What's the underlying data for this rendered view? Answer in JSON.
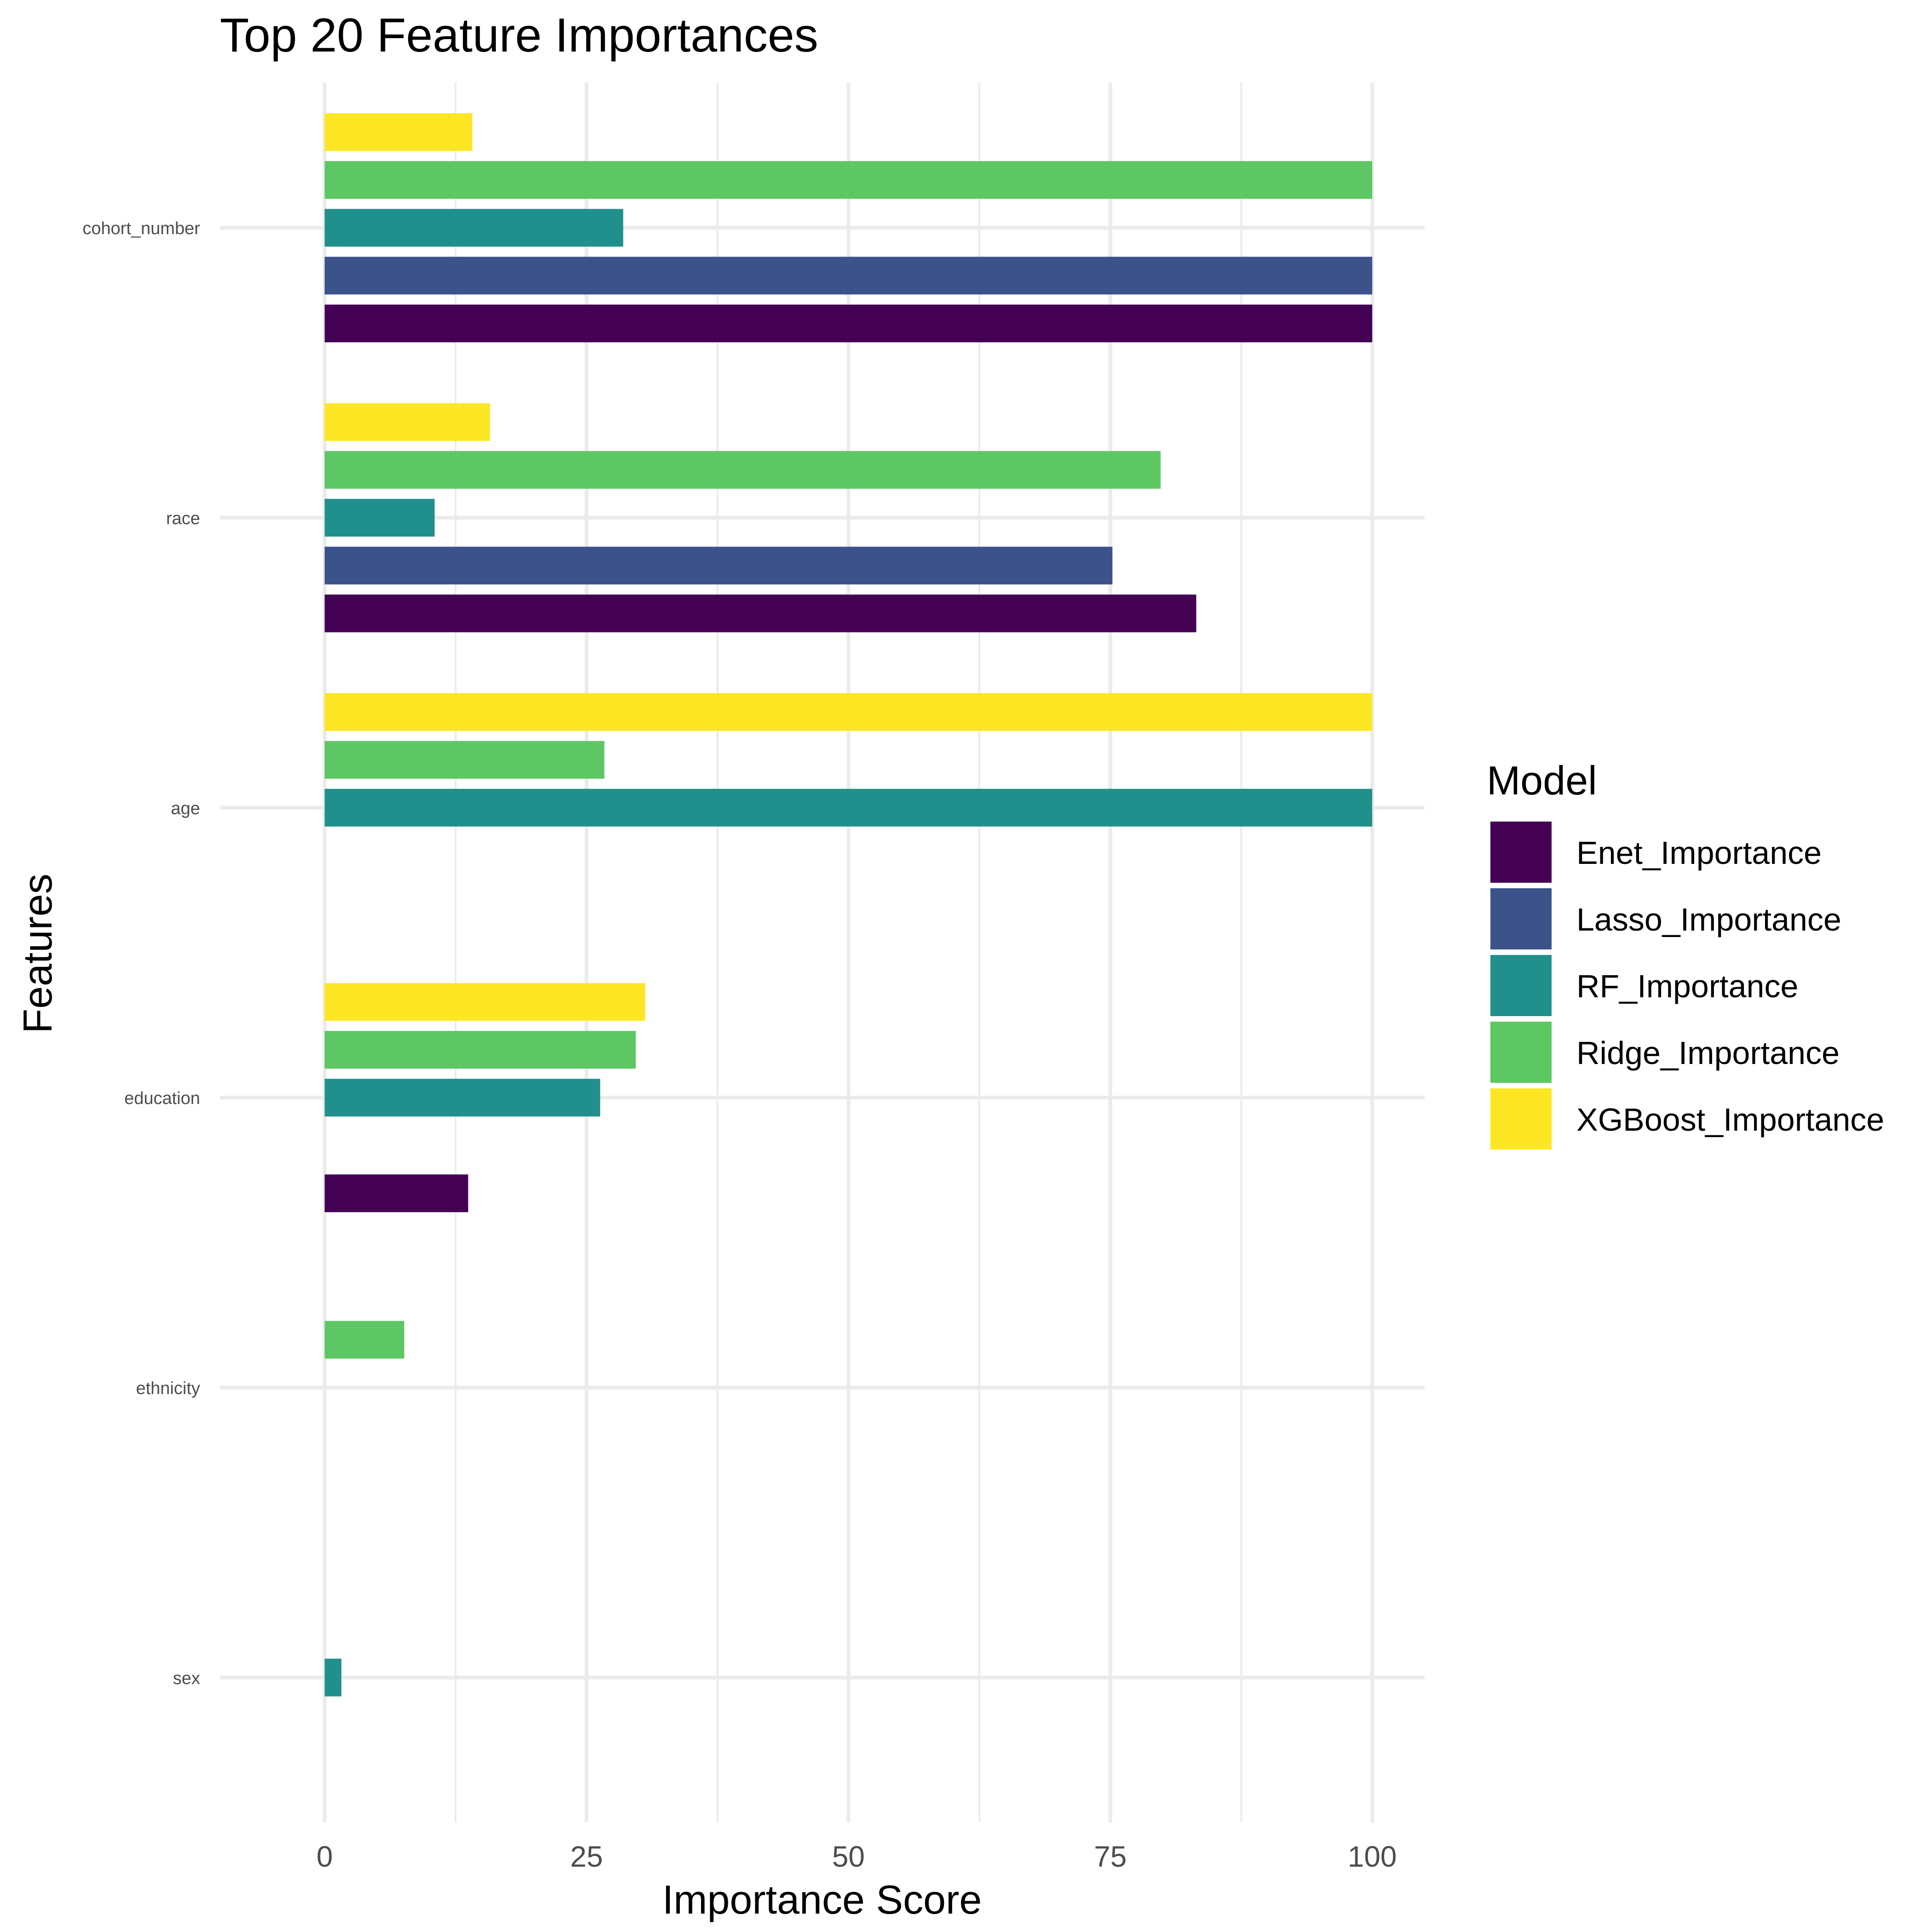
{
  "chart_data": {
    "type": "bar",
    "orientation": "horizontal",
    "title": "Top 20 Feature Importances",
    "xlabel": "Importance Score",
    "ylabel": "Features",
    "xlim": [
      -10,
      105
    ],
    "xticks": [
      0,
      25,
      50,
      75,
      100
    ],
    "categories": [
      "cohort_number",
      "race",
      "age",
      "education",
      "ethnicity",
      "sex"
    ],
    "legend": {
      "title": "Model",
      "position": "right"
    },
    "grid": true,
    "series": [
      {
        "name": "Enet_Importance",
        "color": "#440154",
        "values": [
          100,
          83.2,
          null,
          13.7,
          null,
          null
        ]
      },
      {
        "name": "Lasso_Importance",
        "color": "#3B528B",
        "values": [
          100,
          75.2,
          null,
          null,
          null,
          null
        ]
      },
      {
        "name": "RF_Importance",
        "color": "#21908C",
        "values": [
          28.5,
          10.5,
          100,
          26.3,
          null,
          1.6
        ]
      },
      {
        "name": "Ridge_Importance",
        "color": "#5DC863",
        "values": [
          100,
          79.8,
          26.7,
          29.7,
          7.6,
          null
        ]
      },
      {
        "name": "XGBoost_Importance",
        "color": "#FDE725",
        "values": [
          14.1,
          15.8,
          100,
          30.6,
          null,
          null
        ]
      }
    ]
  }
}
